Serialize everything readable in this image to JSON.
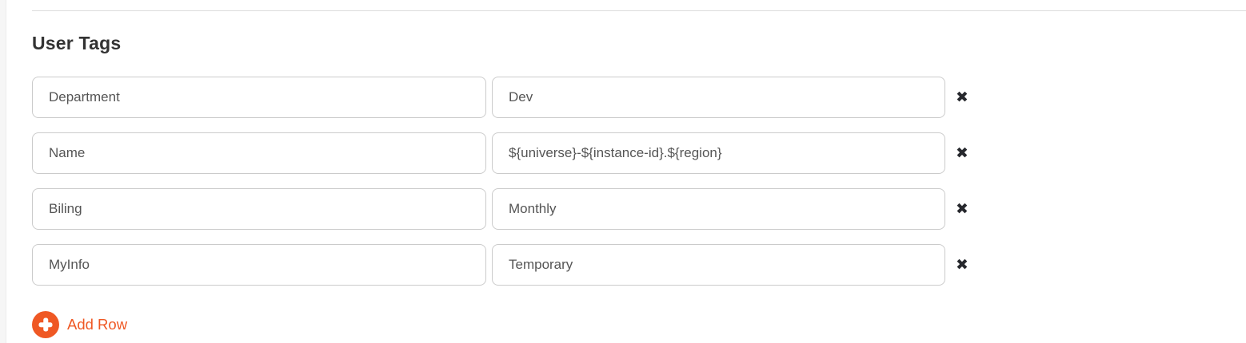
{
  "section": {
    "heading": "User Tags"
  },
  "user_tags": {
    "rows": [
      {
        "key": "Department",
        "value": "Dev"
      },
      {
        "key": "Name",
        "value": "${universe}-${instance-id}.${region}"
      },
      {
        "key": "Biling",
        "value": "Monthly"
      },
      {
        "key": "MyInfo",
        "value": "Temporary"
      }
    ],
    "remove_icon": "✖",
    "add_row": {
      "label": "Add Row"
    }
  },
  "colors": {
    "accent_orange": "#ef5824",
    "input_border": "#cbcbcb",
    "input_text": "#555555",
    "heading_text": "#333333",
    "remove_icon": "#26282d",
    "divider": "#dcdcdc",
    "left_strip_bg": "#f6f6f6"
  }
}
